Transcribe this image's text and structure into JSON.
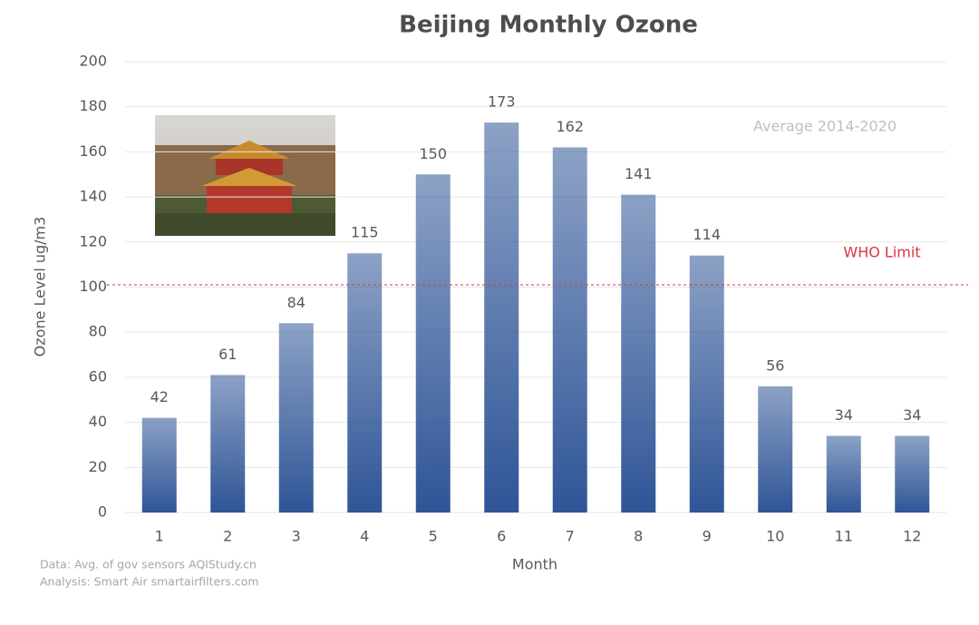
{
  "chart_data": {
    "type": "bar",
    "title": "Beijing Monthly Ozone",
    "subtitle": "Average 2014-2020",
    "x_label": "Month",
    "y_label": "Ozone Level ug/m3",
    "categories": [
      "1",
      "2",
      "3",
      "4",
      "5",
      "6",
      "7",
      "8",
      "9",
      "10",
      "11",
      "12"
    ],
    "values": [
      42,
      61,
      84,
      115,
      150,
      173,
      162,
      141,
      114,
      56,
      34,
      34
    ],
    "color": "#2f5597",
    "ylim": [
      0,
      200
    ],
    "yticks": [
      0,
      20,
      40,
      60,
      80,
      100,
      120,
      140,
      160,
      180,
      200
    ],
    "grid": true,
    "reference_line": {
      "value": 101,
      "label": "WHO Limit",
      "color": "#d9363e"
    },
    "notes": [
      "Data: Avg. of gov sensors AQIStudy.cn",
      "Analysis: Smart Air smartairfilters.com"
    ]
  }
}
